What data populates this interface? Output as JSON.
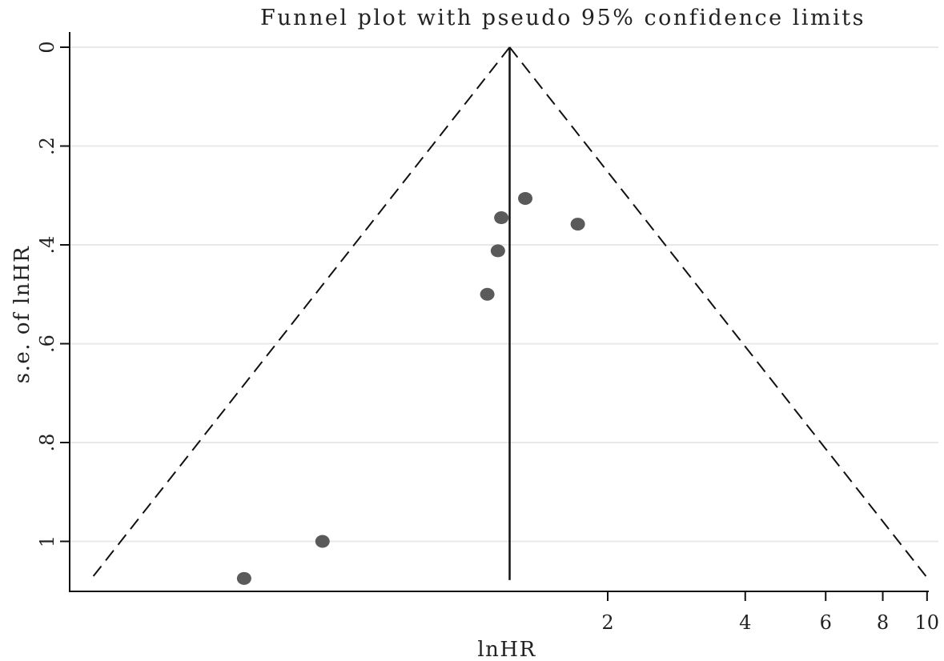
{
  "chart_data": {
    "type": "scatter",
    "title": "Funnel plot with pseudo 95% confidence limits",
    "xlabel": "lnHR",
    "ylabel": "s.e. of lnHR",
    "x_scale": "log",
    "y_reversed": true,
    "xlim": [
      0.15,
      10.5
    ],
    "ylim": [
      0,
      1.1
    ],
    "x_ticks": [
      {
        "value": 2,
        "label": "2"
      },
      {
        "value": 4,
        "label": "4"
      },
      {
        "value": 6,
        "label": "6"
      },
      {
        "value": 8,
        "label": "8"
      },
      {
        "value": 10,
        "label": "10"
      }
    ],
    "y_ticks": [
      {
        "value": 0,
        "label": "0"
      },
      {
        "value": 0.2,
        "label": ".2"
      },
      {
        "value": 0.4,
        "label": ".4"
      },
      {
        "value": 0.6,
        "label": ".6"
      },
      {
        "value": 0.8,
        "label": ".8"
      },
      {
        "value": 1,
        "label": "1"
      }
    ],
    "grid": true,
    "pooled_estimate": 1.22,
    "funnel_se_max": 1.075,
    "points": [
      {
        "x": 1.32,
        "y": 0.306
      },
      {
        "x": 1.17,
        "y": 0.345
      },
      {
        "x": 1.72,
        "y": 0.358
      },
      {
        "x": 1.15,
        "y": 0.412
      },
      {
        "x": 1.09,
        "y": 0.5
      },
      {
        "x": 0.475,
        "y": 1.0
      },
      {
        "x": 0.32,
        "y": 1.075
      }
    ],
    "colors": {
      "point": "#5a5a5a",
      "line": "#111111",
      "grid": "#e8e8e8",
      "text": "#222222"
    }
  }
}
